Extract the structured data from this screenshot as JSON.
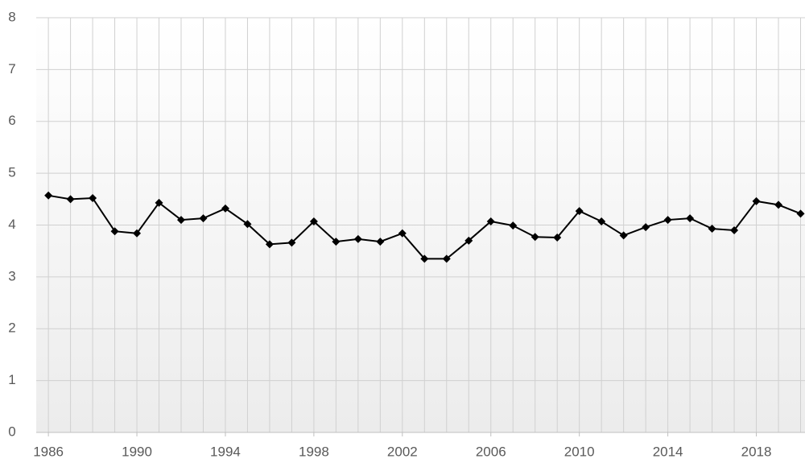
{
  "chart_data": {
    "type": "line",
    "x": [
      1986,
      1987,
      1988,
      1989,
      1990,
      1991,
      1992,
      1993,
      1994,
      1995,
      1996,
      1997,
      1998,
      1999,
      2000,
      2001,
      2002,
      2003,
      2004,
      2005,
      2006,
      2007,
      2008,
      2009,
      2010,
      2011,
      2012,
      2013,
      2014,
      2015,
      2016,
      2017,
      2018,
      2019,
      2020
    ],
    "series": [
      {
        "color": "#000000",
        "values": [
          4.57,
          4.5,
          4.52,
          3.88,
          3.84,
          4.43,
          4.1,
          4.13,
          4.32,
          4.02,
          3.63,
          3.66,
          4.07,
          3.68,
          3.73,
          3.68,
          3.84,
          3.35,
          3.35,
          3.7,
          4.07,
          3.99,
          3.77,
          3.76,
          4.27,
          4.07,
          3.8,
          3.96,
          4.1,
          4.13,
          3.93,
          3.9,
          4.46,
          4.39,
          4.22
        ]
      }
    ],
    "xlim": [
      1985.45,
      2020.2
    ],
    "xticks": [
      1986,
      1990,
      1994,
      1998,
      2002,
      2006,
      2010,
      2014,
      2018
    ],
    "ylim": [
      0,
      8
    ],
    "yticks": [
      0,
      1,
      2,
      3,
      4,
      5,
      6,
      7,
      8
    ],
    "grid": true
  }
}
